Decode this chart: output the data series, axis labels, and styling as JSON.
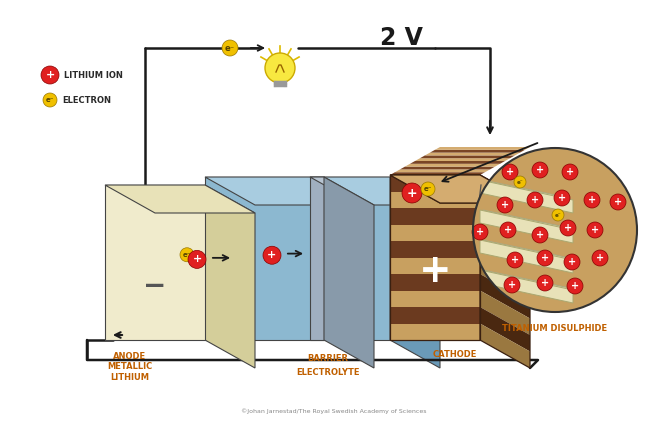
{
  "bg_color": "#ffffff",
  "credit": "©Johan Jarnestad/The Royal Swedish Academy of Sciences",
  "label_lithium_ion": "LITHIUM ION",
  "label_electron": "ELECTRON",
  "label_anode": "ANODE\nMETALLIC\nLITHIUM",
  "label_cathode": "CATHODE",
  "label_electrolyte": "ELECTROLYTE",
  "label_barrier": "BARRIER",
  "label_titanium": "TITANIUM DISULPHIDE",
  "label_voltage": "2 V",
  "anode_face": "#f0ebcc",
  "anode_top": "#e8e2b8",
  "anode_side": "#d4ce9a",
  "elec_face": "#8cb8d0",
  "elec_top": "#a8cce0",
  "elec_side": "#6a9ab8",
  "barrier_face": "#a0afc0",
  "barrier_top": "#b8c5d2",
  "barrier_side": "#889aaa",
  "cathode_dark": "#6b3a1f",
  "cathode_light": "#c8a060",
  "cathode_dark_side": "#4a2810",
  "cathode_light_side": "#9a7840",
  "cathode_top_dark": "#7a4525",
  "cathode_top_light": "#d4ac70",
  "ion_color": "#e02020",
  "electron_color": "#f0c000",
  "text_color": "#2a2a2a",
  "label_color": "#c06000",
  "wire_color": "#1a1a1a",
  "font_label": 6.0,
  "font_voltage": 15
}
